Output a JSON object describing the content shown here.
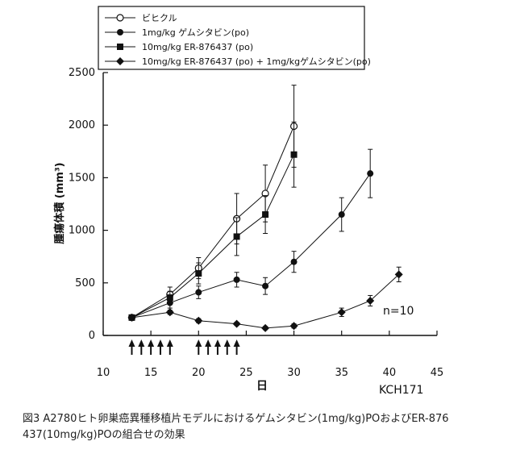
{
  "caption": {
    "line1": "図3 A2780ヒト卵巣癌異種移植片モデルにおけるゲムシタビン(1mg/kg)POおよびER-876",
    "line2": "437(10mg/kg)POの組合せの効果"
  },
  "chart_data": {
    "type": "line",
    "xlabel": "日",
    "ylabel": "腫瘍体積 (mm³)",
    "xlim": [
      10,
      45
    ],
    "ylim": [
      0,
      2500
    ],
    "xticks": [
      10,
      15,
      20,
      25,
      30,
      35,
      40,
      45
    ],
    "yticks": [
      0,
      500,
      1000,
      1500,
      2000,
      2500
    ],
    "grid": false,
    "legend_position": "top-left",
    "annotation_n": "n=10",
    "annotation_model": "KCH171",
    "dosing_days": [
      13,
      14,
      15,
      16,
      17,
      20,
      21,
      22,
      23,
      24
    ],
    "series": [
      {
        "name": "ビヒクル",
        "marker": "open-circle",
        "x": [
          13,
          17,
          20,
          24,
          27,
          30
        ],
        "values": [
          170,
          390,
          640,
          1110,
          1350,
          1990
        ],
        "error": [
          0,
          70,
          100,
          240,
          270,
          390
        ]
      },
      {
        "name": "1mg/kg ゲムシタビン(po)",
        "marker": "filled-circle",
        "x": [
          13,
          17,
          20,
          24,
          27,
          30,
          35,
          38
        ],
        "values": [
          170,
          310,
          410,
          530,
          470,
          700,
          1150,
          1540
        ],
        "error": [
          0,
          50,
          60,
          70,
          80,
          100,
          160,
          230
        ]
      },
      {
        "name": "10mg/kg ER-876437 (po)",
        "marker": "filled-square",
        "x": [
          13,
          17,
          20,
          24,
          27,
          30
        ],
        "values": [
          170,
          360,
          590,
          940,
          1150,
          1720
        ],
        "error": [
          0,
          60,
          100,
          180,
          180,
          310
        ]
      },
      {
        "name": "10mg/kg ER-876437 (po) + 1mg/kgゲムシタビン(po)",
        "marker": "filled-diamond",
        "x": [
          13,
          17,
          20,
          24,
          27,
          30,
          35,
          38,
          41
        ],
        "values": [
          170,
          220,
          140,
          110,
          70,
          90,
          220,
          330,
          580
        ],
        "error": [
          0,
          20,
          20,
          15,
          15,
          20,
          40,
          50,
          70
        ]
      }
    ],
    "colors": {
      "ink": "#111111",
      "background": "#ffffff"
    }
  }
}
